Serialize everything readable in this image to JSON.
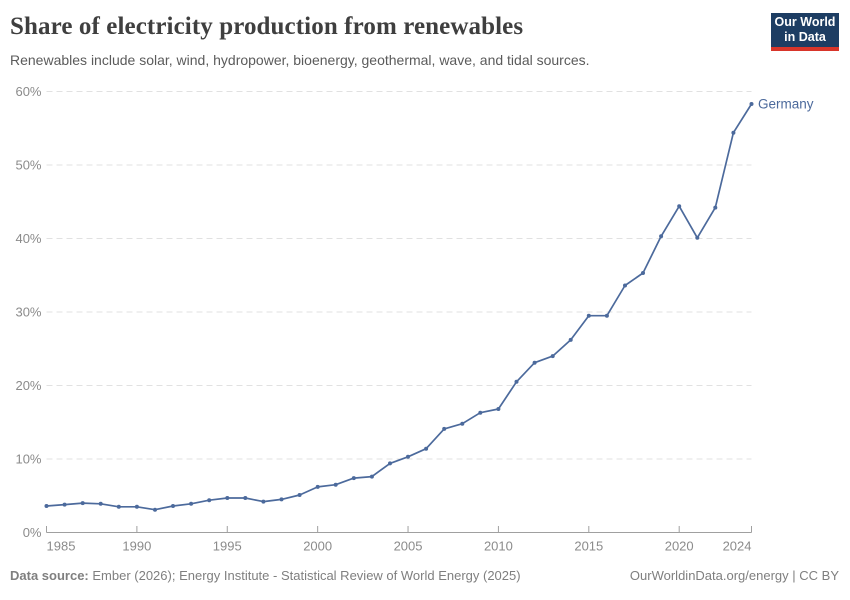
{
  "header": {
    "title": "Share of electricity production from renewables",
    "subtitle": "Renewables include solar, wind, hydropower, bioenergy, geothermal, wave, and tidal sources.",
    "logo": {
      "line1": "Our World",
      "line2": "in Data",
      "bg_color": "#1d3d63",
      "accent_color": "#d8352a"
    }
  },
  "chart_data": {
    "type": "line",
    "title": "Share of electricity production from renewables",
    "xlabel": "",
    "ylabel": "",
    "xlim": [
      1985,
      2024
    ],
    "ylim": [
      0,
      60
    ],
    "x_ticks": [
      1985,
      1990,
      1995,
      2000,
      2005,
      2010,
      2015,
      2020,
      2024
    ],
    "y_ticks": [
      0,
      10,
      20,
      30,
      40,
      50,
      60
    ],
    "y_tick_format": "{}%",
    "grid": "horizontal-dashed",
    "legend": "end-of-line-label",
    "series": [
      {
        "name": "Germany",
        "color": "#4c6a9c",
        "x": [
          1985,
          1986,
          1987,
          1988,
          1989,
          1990,
          1991,
          1992,
          1993,
          1994,
          1995,
          1996,
          1997,
          1998,
          1999,
          2000,
          2001,
          2002,
          2003,
          2004,
          2005,
          2006,
          2007,
          2008,
          2009,
          2010,
          2011,
          2012,
          2013,
          2014,
          2015,
          2016,
          2017,
          2018,
          2019,
          2020,
          2021,
          2022,
          2023,
          2024
        ],
        "values": [
          3.6,
          3.8,
          4.0,
          3.9,
          3.5,
          3.5,
          3.1,
          3.6,
          3.9,
          4.4,
          4.7,
          4.7,
          4.2,
          4.5,
          5.1,
          6.2,
          6.5,
          7.4,
          7.6,
          9.4,
          10.3,
          11.4,
          14.1,
          14.8,
          16.3,
          16.8,
          20.5,
          23.1,
          24.0,
          26.2,
          29.5,
          29.5,
          33.6,
          35.3,
          40.3,
          44.4,
          40.1,
          44.2,
          54.4,
          58.3
        ]
      }
    ]
  },
  "footer": {
    "source_label": "Data source:",
    "source_text": " Ember (2026); Energy Institute - Statistical Review of World Energy (2025)",
    "link_text": "OurWorldinData.org/energy",
    "separator": " | ",
    "license_text": "CC BY"
  }
}
